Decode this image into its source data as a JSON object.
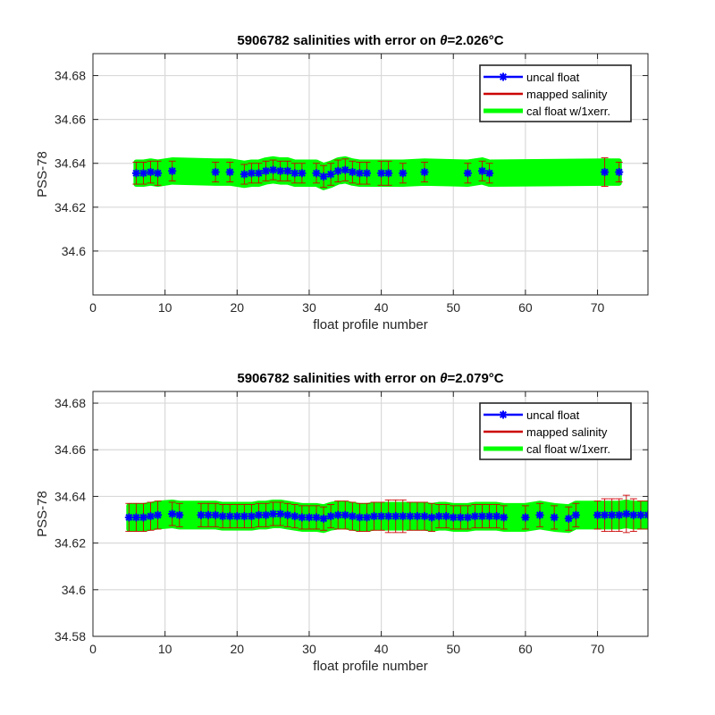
{
  "chart_data": [
    {
      "type": "line",
      "title_prefix": "5906782 salinities with error on ",
      "title_theta": "θ",
      "title_value": "=2.026",
      "title_unit": "°C",
      "xlabel": "float profile number",
      "ylabel": "PSS-78",
      "xlim": [
        0,
        77
      ],
      "ylim": [
        34.58,
        34.69
      ],
      "xticks": [
        0,
        10,
        20,
        30,
        40,
        50,
        60,
        70
      ],
      "xtick_labels": [
        "0",
        "10",
        "20",
        "30",
        "40",
        "50",
        "60",
        "70"
      ],
      "yticks": [
        34.6,
        34.62,
        34.64,
        34.66,
        34.68
      ],
      "ytick_labels": [
        "34.6",
        "34.62",
        "34.64",
        "34.66",
        "34.68"
      ],
      "grid": true,
      "legend_position": "top-right",
      "legend": [
        "uncal float",
        "mapped salinity",
        "cal float w/1xerr."
      ],
      "colors": {
        "uncal": "#0000ff",
        "mapped": "#cc0000",
        "cal": "#00ff00"
      },
      "x": [
        6,
        7,
        8,
        9,
        11,
        17,
        19,
        21,
        22,
        23,
        24,
        25,
        26,
        27,
        28,
        29,
        31,
        32,
        33,
        34,
        35,
        36,
        37,
        38,
        40,
        41,
        43,
        46,
        52,
        54,
        55,
        71,
        73
      ],
      "series": [
        {
          "name": "uncal float",
          "values": [
            34.6355,
            34.6355,
            34.636,
            34.6355,
            34.6365,
            34.636,
            34.636,
            34.635,
            34.6355,
            34.6355,
            34.6365,
            34.637,
            34.6365,
            34.6365,
            34.6355,
            34.6355,
            34.6355,
            34.634,
            34.635,
            34.6365,
            34.637,
            34.636,
            34.6355,
            34.6355,
            34.6355,
            34.6355,
            34.6355,
            34.636,
            34.6355,
            34.6365,
            34.6355,
            34.636,
            34.636
          ]
        },
        {
          "name": "mapped salinity",
          "values": [
            34.6355,
            34.6355,
            34.636,
            34.6355,
            34.6365,
            34.636,
            34.636,
            34.635,
            34.6355,
            34.6355,
            34.6365,
            34.637,
            34.6365,
            34.6365,
            34.6355,
            34.6355,
            34.6355,
            34.634,
            34.635,
            34.6365,
            34.637,
            34.636,
            34.6355,
            34.6355,
            34.6355,
            34.6355,
            34.6355,
            34.636,
            34.6355,
            34.6365,
            34.6355,
            34.636,
            34.636
          ],
          "err": [
            0.005,
            0.005,
            0.005,
            0.0055,
            0.0045,
            0.0045,
            0.0045,
            0.0045,
            0.0045,
            0.0045,
            0.0045,
            0.0045,
            0.0045,
            0.0045,
            0.0045,
            0.0045,
            0.0045,
            0.005,
            0.005,
            0.005,
            0.005,
            0.005,
            0.005,
            0.005,
            0.0055,
            0.0055,
            0.0045,
            0.0045,
            0.0045,
            0.0045,
            0.0045,
            0.0065,
            0.0045
          ]
        },
        {
          "name": "cal float w/1xerr.",
          "band_halfwidth": 0.005
        }
      ]
    },
    {
      "type": "line",
      "title_prefix": "5906782 salinities with error on ",
      "title_theta": "θ",
      "title_value": "=2.079",
      "title_unit": "°C",
      "xlabel": "float profile number",
      "ylabel": "PSS-78",
      "xlim": [
        0,
        77
      ],
      "ylim": [
        34.58,
        34.685
      ],
      "xticks": [
        0,
        10,
        20,
        30,
        40,
        50,
        60,
        70
      ],
      "xtick_labels": [
        "0",
        "10",
        "20",
        "30",
        "40",
        "50",
        "60",
        "70"
      ],
      "yticks": [
        34.58,
        34.6,
        34.62,
        34.64,
        34.66,
        34.68
      ],
      "ytick_labels": [
        "34.58",
        "34.6",
        "34.62",
        "34.64",
        "34.66",
        "34.68"
      ],
      "grid": true,
      "legend_position": "top-right",
      "legend": [
        "uncal float",
        "mapped salinity",
        "cal float w/1xerr."
      ],
      "colors": {
        "uncal": "#0000ff",
        "mapped": "#cc0000",
        "cal": "#00ff00"
      },
      "x": [
        5,
        6,
        7,
        8,
        9,
        11,
        12,
        15,
        16,
        17,
        18,
        19,
        20,
        21,
        22,
        23,
        24,
        25,
        26,
        27,
        28,
        29,
        30,
        31,
        32,
        33,
        34,
        35,
        36,
        37,
        38,
        39,
        40,
        41,
        42,
        43,
        44,
        45,
        46,
        47,
        48,
        49,
        50,
        51,
        52,
        53,
        54,
        55,
        56,
        57,
        60,
        62,
        64,
        66,
        67,
        70,
        71,
        72,
        73,
        74,
        75,
        76,
        77
      ],
      "series": [
        {
          "name": "uncal float",
          "values": [
            34.631,
            34.631,
            34.631,
            34.6315,
            34.632,
            34.6325,
            34.632,
            34.632,
            34.632,
            34.632,
            34.6315,
            34.6315,
            34.6315,
            34.6315,
            34.6315,
            34.632,
            34.632,
            34.6325,
            34.6325,
            34.632,
            34.6315,
            34.631,
            34.631,
            34.631,
            34.6305,
            34.6315,
            34.632,
            34.632,
            34.6315,
            34.631,
            34.631,
            34.6315,
            34.6315,
            34.6315,
            34.6315,
            34.6315,
            34.6315,
            34.6315,
            34.6315,
            34.631,
            34.6315,
            34.6315,
            34.631,
            34.631,
            34.631,
            34.6315,
            34.6315,
            34.6315,
            34.6315,
            34.631,
            34.631,
            34.632,
            34.631,
            34.6305,
            34.632,
            34.632,
            34.632,
            34.632,
            34.632,
            34.6325,
            34.632,
            34.632,
            34.632
          ]
        },
        {
          "name": "mapped salinity",
          "values": [
            34.631,
            34.631,
            34.631,
            34.6315,
            34.632,
            34.6325,
            34.632,
            34.632,
            34.632,
            34.632,
            34.6315,
            34.6315,
            34.6315,
            34.6315,
            34.6315,
            34.632,
            34.632,
            34.6325,
            34.6325,
            34.632,
            34.6315,
            34.631,
            34.631,
            34.631,
            34.6305,
            34.6315,
            34.632,
            34.632,
            34.6315,
            34.631,
            34.631,
            34.6315,
            34.6315,
            34.6315,
            34.6315,
            34.6315,
            34.6315,
            34.6315,
            34.6315,
            34.631,
            34.6315,
            34.6315,
            34.631,
            34.631,
            34.631,
            34.6315,
            34.6315,
            34.6315,
            34.6315,
            34.631,
            34.631,
            34.632,
            34.631,
            34.6305,
            34.632,
            34.632,
            34.632,
            34.632,
            34.632,
            34.6325,
            34.632,
            34.632,
            34.632
          ],
          "err": [
            0.006,
            0.006,
            0.006,
            0.006,
            0.006,
            0.005,
            0.005,
            0.005,
            0.005,
            0.005,
            0.005,
            0.005,
            0.005,
            0.005,
            0.005,
            0.005,
            0.005,
            0.005,
            0.005,
            0.005,
            0.005,
            0.005,
            0.005,
            0.005,
            0.005,
            0.005,
            0.006,
            0.006,
            0.006,
            0.006,
            0.006,
            0.006,
            0.006,
            0.007,
            0.007,
            0.007,
            0.006,
            0.006,
            0.006,
            0.006,
            0.005,
            0.005,
            0.005,
            0.005,
            0.005,
            0.005,
            0.005,
            0.005,
            0.005,
            0.005,
            0.005,
            0.005,
            0.005,
            0.005,
            0.005,
            0.006,
            0.007,
            0.007,
            0.007,
            0.008,
            0.007,
            0.006,
            0.006
          ]
        },
        {
          "name": "cal float w/1xerr.",
          "band_halfwidth": 0.005
        }
      ]
    }
  ]
}
